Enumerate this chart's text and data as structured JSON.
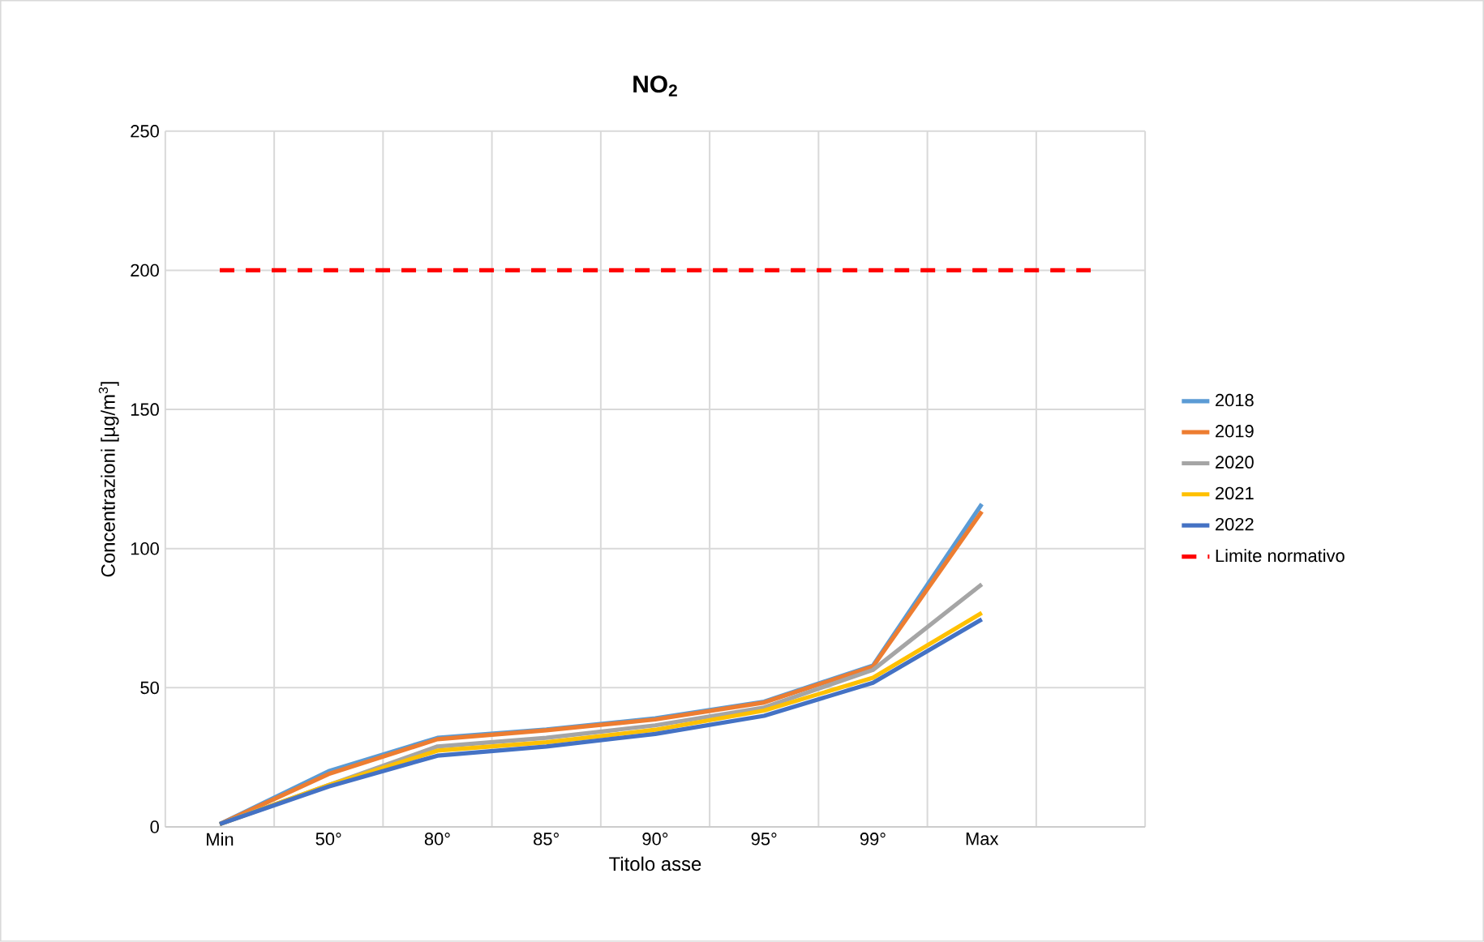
{
  "chart_data": {
    "type": "line",
    "title": "**NO$_{2}$**",
    "xlabel": "Titolo asse",
    "ylabel": "Concentrazioni [µg/m$^{3}$]",
    "categories": [
      "Min",
      "50°",
      "80°",
      "85°",
      "90°",
      "95°",
      "99°",
      "Max",
      null
    ],
    "ylim": [
      0,
      250
    ],
    "yticks": [
      0,
      50,
      100,
      150,
      200,
      250
    ],
    "grid": true,
    "legend": "right",
    "marker": "none",
    "series": [
      {
        "name": "2018",
        "color": "#5b9bd5",
        "values": [
          1,
          20,
          32,
          35,
          39,
          45,
          58,
          116,
          null
        ]
      },
      {
        "name": "2019",
        "color": "#ed7d31",
        "values": [
          1,
          19,
          31.5,
          34.7,
          38.6,
          44.7,
          57.6,
          113.3,
          null
        ]
      },
      {
        "name": "2020",
        "color": "#a5a5a5",
        "values": [
          1,
          15,
          28.9,
          32,
          36.5,
          42.9,
          56.4,
          87.2,
          null
        ]
      },
      {
        "name": "2021",
        "color": "#ffc000",
        "values": [
          1,
          15,
          27.4,
          30.4,
          34.9,
          41.8,
          53.6,
          76.9,
          null
        ]
      },
      {
        "name": "2022",
        "color": "#4472c4",
        "values": [
          1,
          14.5,
          25.6,
          28.9,
          33.4,
          39.9,
          51.8,
          74.6,
          null
        ]
      },
      {
        "name": "Limite normativo",
        "color": "#ff0000",
        "line_style": "dashed",
        "values": [
          200,
          200,
          200,
          200,
          200,
          200,
          200,
          200,
          200
        ]
      }
    ]
  }
}
